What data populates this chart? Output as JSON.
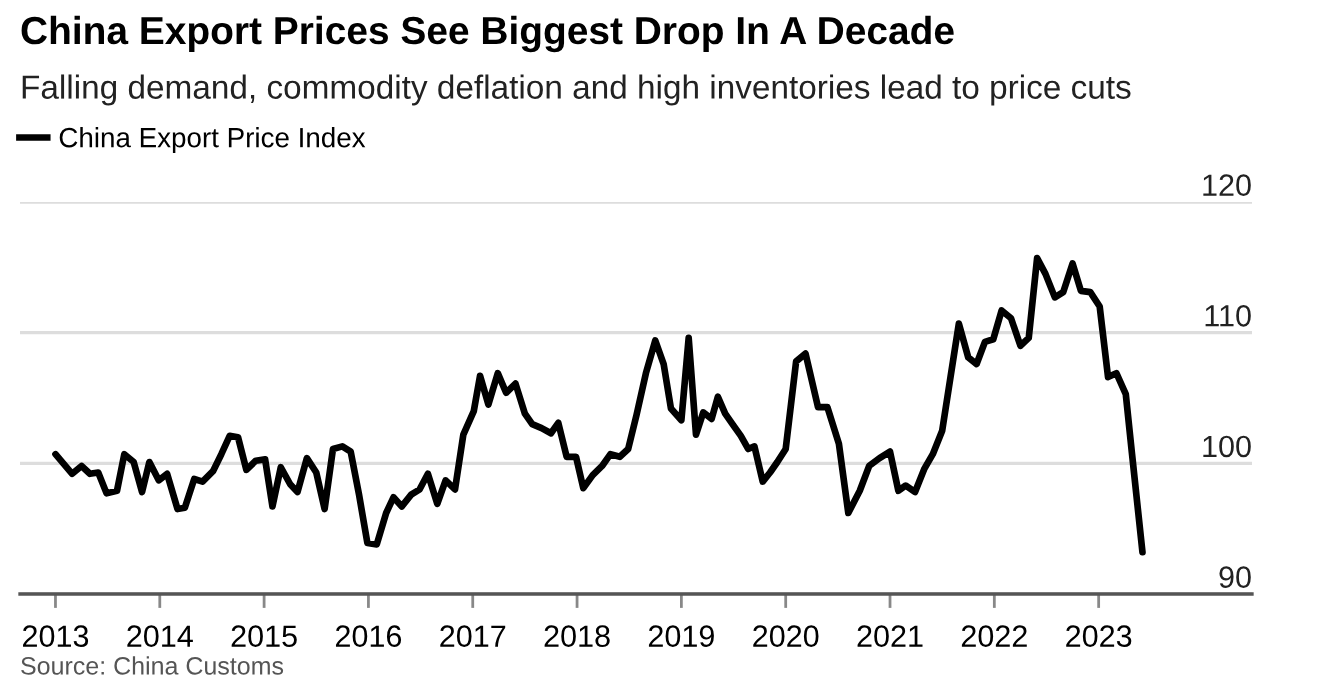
{
  "chart_data": {
    "type": "line",
    "title": "China Export Prices See Biggest Drop In A Decade",
    "subtitle": "Falling demand, commodity deflation and high inventories lead to price cuts",
    "annotations": [
      "Source: China Customs"
    ],
    "x": [
      2013.0,
      2013.16,
      2013.25,
      2013.33,
      2013.41,
      2013.49,
      2013.59,
      2013.66,
      2013.75,
      2013.83,
      2013.9,
      2013.99,
      2014.07,
      2014.17,
      2014.24,
      2014.33,
      2014.41,
      2014.51,
      2014.59,
      2014.67,
      2014.75,
      2014.83,
      2014.92,
      2015.01,
      2015.08,
      2015.16,
      2015.25,
      2015.32,
      2015.41,
      2015.5,
      2015.58,
      2015.66,
      2015.75,
      2015.83,
      2015.91,
      2015.99,
      2016.08,
      2016.17,
      2016.24,
      2016.32,
      2016.41,
      2016.49,
      2016.57,
      2016.66,
      2016.74,
      2016.83,
      2016.91,
      2017.01,
      2017.07,
      2017.15,
      2017.24,
      2017.32,
      2017.41,
      2017.5,
      2017.57,
      2017.66,
      2017.75,
      2017.82,
      2017.9,
      2017.99,
      2018.06,
      2018.15,
      2018.24,
      2018.32,
      2018.41,
      2018.49,
      2018.57,
      2018.66,
      2018.75,
      2018.83,
      2018.9,
      2019.0,
      2019.07,
      2019.14,
      2019.21,
      2019.29,
      2019.35,
      2019.42,
      2019.49,
      2019.57,
      2019.64,
      2019.7,
      2019.78,
      2019.85,
      2019.92,
      2020.0,
      2020.1,
      2020.19,
      2020.31,
      2020.4,
      2020.51,
      2020.6,
      2020.71,
      2020.8,
      2020.9,
      2021.0,
      2021.08,
      2021.15,
      2021.24,
      2021.33,
      2021.41,
      2021.5,
      2021.58,
      2021.66,
      2021.75,
      2021.83,
      2021.91,
      2021.99,
      2022.07,
      2022.16,
      2022.25,
      2022.33,
      2022.41,
      2022.49,
      2022.58,
      2022.66,
      2022.75,
      2022.83,
      2022.92,
      2023.01,
      2023.09,
      2023.17,
      2023.26,
      2023.32,
      2023.42
    ],
    "series": [
      {
        "name": "China Export Price Index",
        "color": "#000000",
        "values": [
          100.7,
          99.2,
          99.8,
          99.2,
          99.3,
          97.7,
          97.9,
          100.7,
          100.1,
          97.8,
          100.1,
          98.7,
          99.2,
          96.5,
          96.6,
          98.8,
          98.6,
          99.4,
          100.7,
          102.1,
          102.0,
          99.5,
          100.2,
          100.3,
          96.7,
          99.7,
          98.4,
          97.8,
          100.4,
          99.3,
          96.5,
          101.1,
          101.3,
          100.9,
          97.6,
          93.9,
          93.8,
          96.2,
          97.4,
          96.7,
          97.6,
          98.0,
          99.2,
          96.9,
          98.7,
          98.0,
          102.2,
          104.0,
          106.7,
          104.5,
          106.9,
          105.4,
          106.1,
          103.8,
          103.0,
          102.7,
          102.3,
          103.1,
          100.5,
          100.5,
          98.1,
          99.1,
          99.8,
          100.7,
          100.5,
          101.1,
          103.7,
          106.9,
          109.4,
          107.6,
          104.2,
          103.3,
          109.6,
          102.2,
          103.9,
          103.4,
          105.1,
          103.8,
          103.0,
          102.1,
          101.1,
          101.3,
          98.6,
          99.3,
          100.1,
          101.1,
          107.8,
          108.4,
          104.3,
          104.3,
          101.5,
          96.2,
          97.9,
          99.8,
          100.4,
          100.9,
          97.9,
          98.3,
          97.8,
          99.6,
          100.7,
          102.5,
          106.6,
          110.7,
          108.1,
          107.6,
          109.3,
          109.5,
          111.7,
          111.1,
          109.0,
          109.6,
          115.7,
          114.5,
          112.7,
          113.1,
          115.3,
          113.2,
          113.1,
          112.0,
          106.6,
          106.9,
          105.3,
          100.7,
          93.2
        ]
      }
    ],
    "xlim": [
      2012.66,
      2024.47
    ],
    "xticks": [
      2013,
      2014,
      2015,
      2016,
      2017,
      2018,
      2019,
      2020,
      2021,
      2022,
      2023
    ],
    "ylim": [
      90,
      120
    ],
    "yticks": [
      90,
      100,
      110,
      120
    ],
    "grid": "y",
    "legend": "top left",
    "line_style": "solid"
  }
}
